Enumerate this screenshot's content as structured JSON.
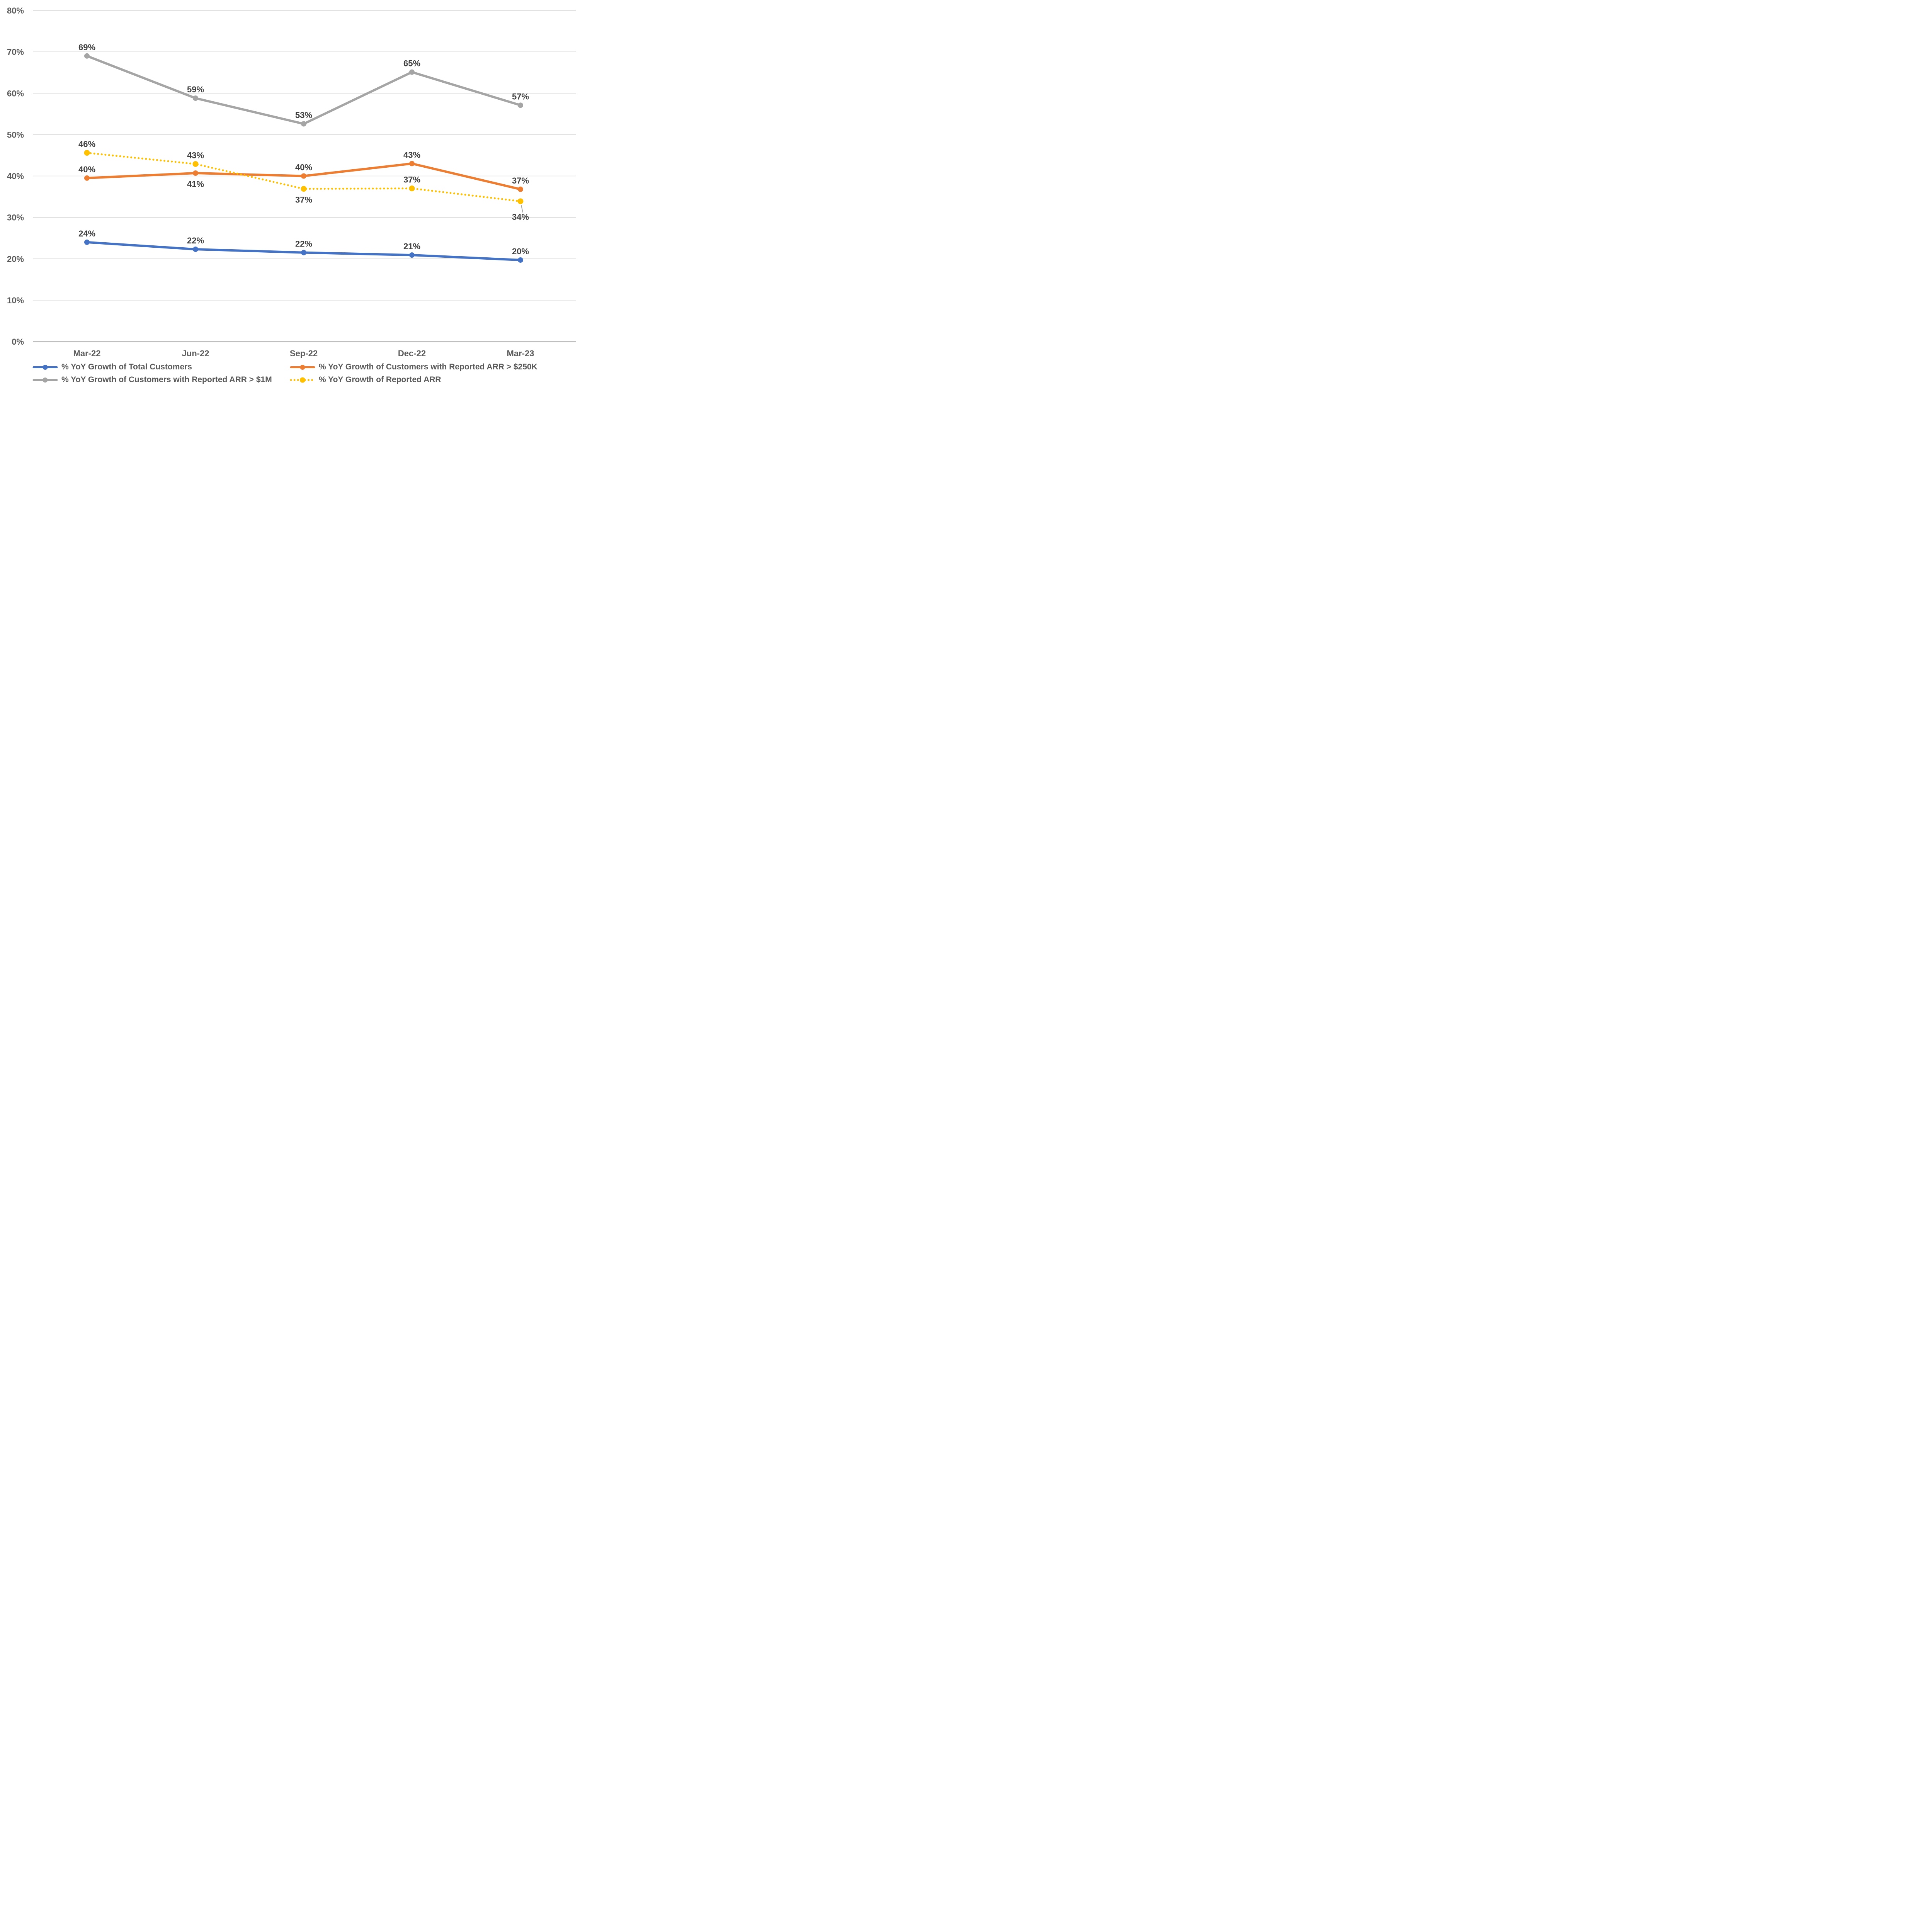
{
  "chart_data": {
    "type": "line",
    "title": "",
    "categories": [
      "Mar-22",
      "Jun-22",
      "Sep-22",
      "Dec-22",
      "Mar-23"
    ],
    "x": [
      "Mar-22",
      "Jun-22",
      "Sep-22",
      "Dec-22",
      "Mar-23"
    ],
    "y_axis": {
      "min": 0,
      "max": 80,
      "step": 10,
      "ticks": [
        "0%",
        "10%",
        "20%",
        "30%",
        "40%",
        "50%",
        "60%",
        "70%",
        "80%"
      ]
    },
    "grid": "horizontal-only",
    "legend_position": "bottom-two-columns",
    "series": [
      {
        "name": "% YoY Growth of Total Customers",
        "color": "#4472C4",
        "style": "solid",
        "values": [
          24,
          22,
          22,
          21,
          20
        ],
        "plot_values": [
          24.0,
          22.3,
          21.5,
          20.9,
          19.7
        ],
        "labels": [
          "24%",
          "22%",
          "22%",
          "21%",
          "20%"
        ],
        "label_side": [
          "above",
          "above",
          "above",
          "above",
          "above"
        ]
      },
      {
        "name": "% YoY Growth of Customers with Reported ARR > $250K",
        "color": "#ED7D31",
        "style": "solid",
        "values": [
          40,
          41,
          40,
          43,
          37
        ],
        "plot_values": [
          39.5,
          40.7,
          40.0,
          43.0,
          36.8
        ],
        "labels": [
          "40%",
          "41%",
          "40%",
          "43%",
          "37%"
        ],
        "label_side": [
          "above",
          "below",
          "above",
          "above",
          "above"
        ]
      },
      {
        "name": "% YoY Growth of Customers with Reported ARR > $1M",
        "color": "#A5A5A5",
        "style": "solid",
        "values": [
          69,
          59,
          53,
          65,
          57
        ],
        "plot_values": [
          69.0,
          58.8,
          52.6,
          65.1,
          57.1
        ],
        "labels": [
          "69%",
          "59%",
          "53%",
          "65%",
          "57%"
        ],
        "label_side": [
          "above",
          "above",
          "above",
          "above",
          "above"
        ]
      },
      {
        "name": "% YoY Growth of Reported ARR",
        "color": "#FFC000",
        "style": "dotted",
        "values": [
          46,
          43,
          37,
          37,
          34
        ],
        "plot_values": [
          45.6,
          42.9,
          36.9,
          37.0,
          33.9
        ],
        "labels": [
          "46%",
          "43%",
          "37%",
          "37%",
          "34%"
        ],
        "label_side": [
          "above",
          "above",
          "below",
          "above",
          "below-leader"
        ]
      }
    ],
    "colors": {
      "background": "#FFFFFF",
      "gridline": "#D9D9D9",
      "axis_line": "#BFBFBF",
      "tick_label": "#595959",
      "data_label": "#3F3F3F",
      "leader_line": "#A6A6A6"
    }
  }
}
